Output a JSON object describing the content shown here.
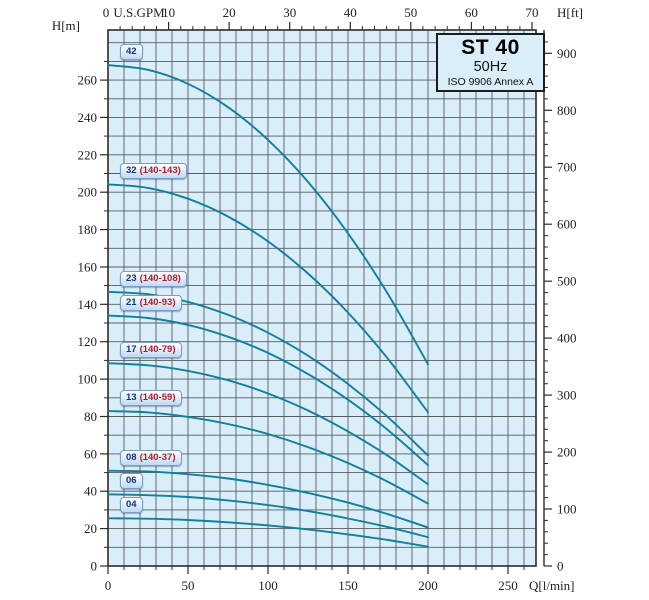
{
  "title_box": {
    "model": "ST 40",
    "frequency": "50Hz",
    "standard": "ISO 9906 Annex A"
  },
  "axes": {
    "top": {
      "unit": "U.S.GPM",
      "zero_label": "0",
      "major_ticks_gpm": [
        10,
        20,
        30,
        40,
        50,
        60,
        70
      ],
      "minor_step_gpm": 2
    },
    "left": {
      "unit": "H[m]",
      "tick_labels": [
        0,
        20,
        40,
        60,
        80,
        100,
        120,
        140,
        160,
        180,
        200,
        220,
        240,
        260
      ],
      "minor_step_m": 10
    },
    "right": {
      "unit": "H[ft]",
      "tick_labels": [
        0,
        100,
        200,
        300,
        400,
        500,
        600,
        700,
        800,
        900
      ],
      "minor_step_ft": 20
    },
    "bottom": {
      "unit": "Q[l/min]",
      "tick_labels": [
        0,
        50,
        100,
        150,
        200,
        250
      ],
      "minor_step_lmin": 10
    }
  },
  "colors": {
    "plot_bg": "#d9eef8",
    "grid": "#565b63",
    "border": "#2b2b2b",
    "curve": "#117f9e",
    "axis_text": "#1f1f1f",
    "badge_number": "#16357f",
    "badge_range": "#b01e2e",
    "title_text": "#000000"
  },
  "chart_data": {
    "type": "line",
    "title": "ST 40 50Hz pump performance curves (ISO 9906 Annex A)",
    "xlabel": "Q[l/min]",
    "xlabel_secondary": "U.S.GPM",
    "ylabel": "H[m]",
    "ylabel_secondary": "H[ft]",
    "xlim_lmin": [
      0,
      267
    ],
    "ylim_m": [
      0,
      287
    ],
    "grid": true,
    "legend_position": "on-curve-badges",
    "x_lmin": [
      0,
      25,
      50,
      75,
      100,
      125,
      150,
      175,
      200
    ],
    "series": [
      {
        "name": "42",
        "stages": 42,
        "label": "42",
        "label_range": "",
        "head_m": [
          268,
          265.5,
          258,
          245.5,
          228,
          205.5,
          178,
          145.5,
          107.9
        ]
      },
      {
        "name": "32 (140-143)",
        "stages": 32,
        "label": "32",
        "label_range": "(140-143)",
        "head_m": [
          204.2,
          202.3,
          196.5,
          187,
          173.7,
          156.5,
          135.6,
          110.8,
          82.2
        ]
      },
      {
        "name": "23 (140-108)",
        "stages": 23,
        "label": "23",
        "label_range": "(140-108)",
        "head_m": [
          146.7,
          145.4,
          141.3,
          134.4,
          124.8,
          112.5,
          97.4,
          79.6,
          59.1
        ]
      },
      {
        "name": "21 (140-93)",
        "stages": 21,
        "label": "21",
        "label_range": "(140-93)",
        "head_m": [
          134,
          132.7,
          129,
          122.7,
          114,
          102.7,
          89,
          72.7,
          54
        ]
      },
      {
        "name": "17 (140-79)",
        "stages": 17,
        "label": "17",
        "label_range": "(140-79)",
        "head_m": [
          108.5,
          107.4,
          104.4,
          99.4,
          92.3,
          83.2,
          72,
          58.9,
          43.7
        ]
      },
      {
        "name": "13 (140-59)",
        "stages": 13,
        "label": "13",
        "label_range": "(140-59)",
        "head_m": [
          82.9,
          82.2,
          79.8,
          76,
          70.6,
          63.6,
          55.1,
          45,
          33.4
        ]
      },
      {
        "name": "08 (140-37)",
        "stages": 8,
        "label": "08",
        "label_range": "(140-37)",
        "head_m": [
          51,
          50.6,
          49.1,
          46.8,
          43.4,
          39.1,
          33.9,
          27.7,
          20.6
        ]
      },
      {
        "name": "06",
        "stages": 6,
        "label": "06",
        "label_range": "",
        "head_m": [
          38.3,
          37.9,
          36.9,
          35.1,
          32.6,
          29.4,
          25.4,
          20.8,
          15.4
        ]
      },
      {
        "name": "04",
        "stages": 4,
        "label": "04",
        "label_range": "",
        "head_m": [
          25.5,
          25.3,
          24.6,
          23.4,
          21.7,
          19.6,
          16.9,
          13.9,
          10.3
        ]
      }
    ]
  }
}
